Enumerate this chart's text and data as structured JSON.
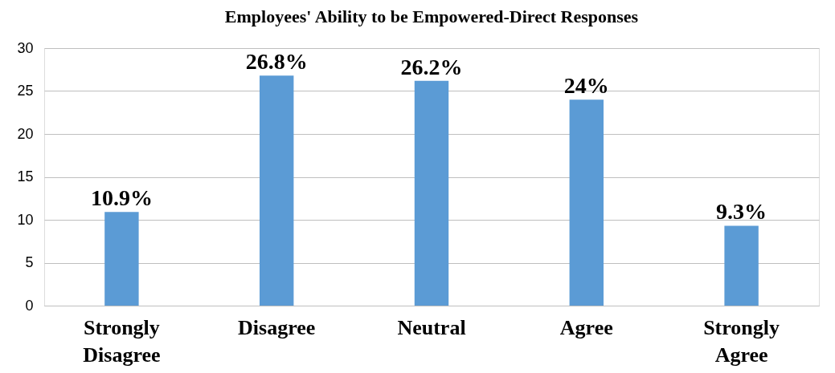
{
  "chart_data": {
    "type": "bar",
    "title": "Employees' Ability to be Empowered-Direct Responses",
    "categories": [
      "Strongly Disagree",
      "Disagree",
      "Neutral",
      "Agree",
      "Strongly Agree"
    ],
    "values": [
      10.9,
      26.8,
      26.2,
      24,
      9.3
    ],
    "value_labels": [
      "10.9%",
      "26.8%",
      "26.2%",
      "24%",
      "9.3%"
    ],
    "color": "#5b9bd5",
    "ylim": [
      0,
      30
    ],
    "yticks": [
      0,
      5,
      10,
      15,
      20,
      25,
      30
    ],
    "grid": "y"
  }
}
